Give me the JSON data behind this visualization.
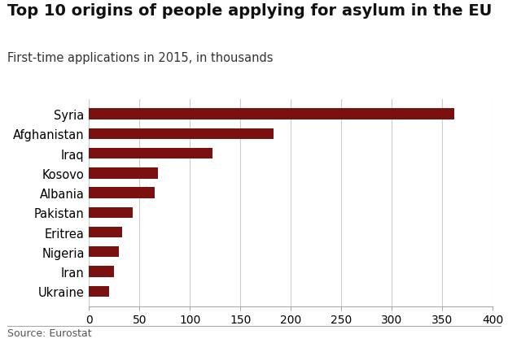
{
  "title": "Top 10 origins of people applying for asylum in the EU",
  "subtitle": "First-time applications in 2015, in thousands",
  "source": "Source: Eurostat",
  "categories": [
    "Ukraine",
    "Iran",
    "Nigeria",
    "Eritrea",
    "Pakistan",
    "Albania",
    "Kosovo",
    "Iraq",
    "Afghanistan",
    "Syria"
  ],
  "values": [
    20,
    25,
    30,
    33,
    43,
    65,
    68,
    122,
    183,
    362
  ],
  "bar_color": "#7b1010",
  "xlim": [
    0,
    400
  ],
  "xticks": [
    0,
    50,
    100,
    150,
    200,
    250,
    300,
    350,
    400
  ],
  "background_color": "#ffffff",
  "title_fontsize": 14,
  "subtitle_fontsize": 10.5,
  "tick_fontsize": 10,
  "label_fontsize": 10.5,
  "source_fontsize": 9
}
